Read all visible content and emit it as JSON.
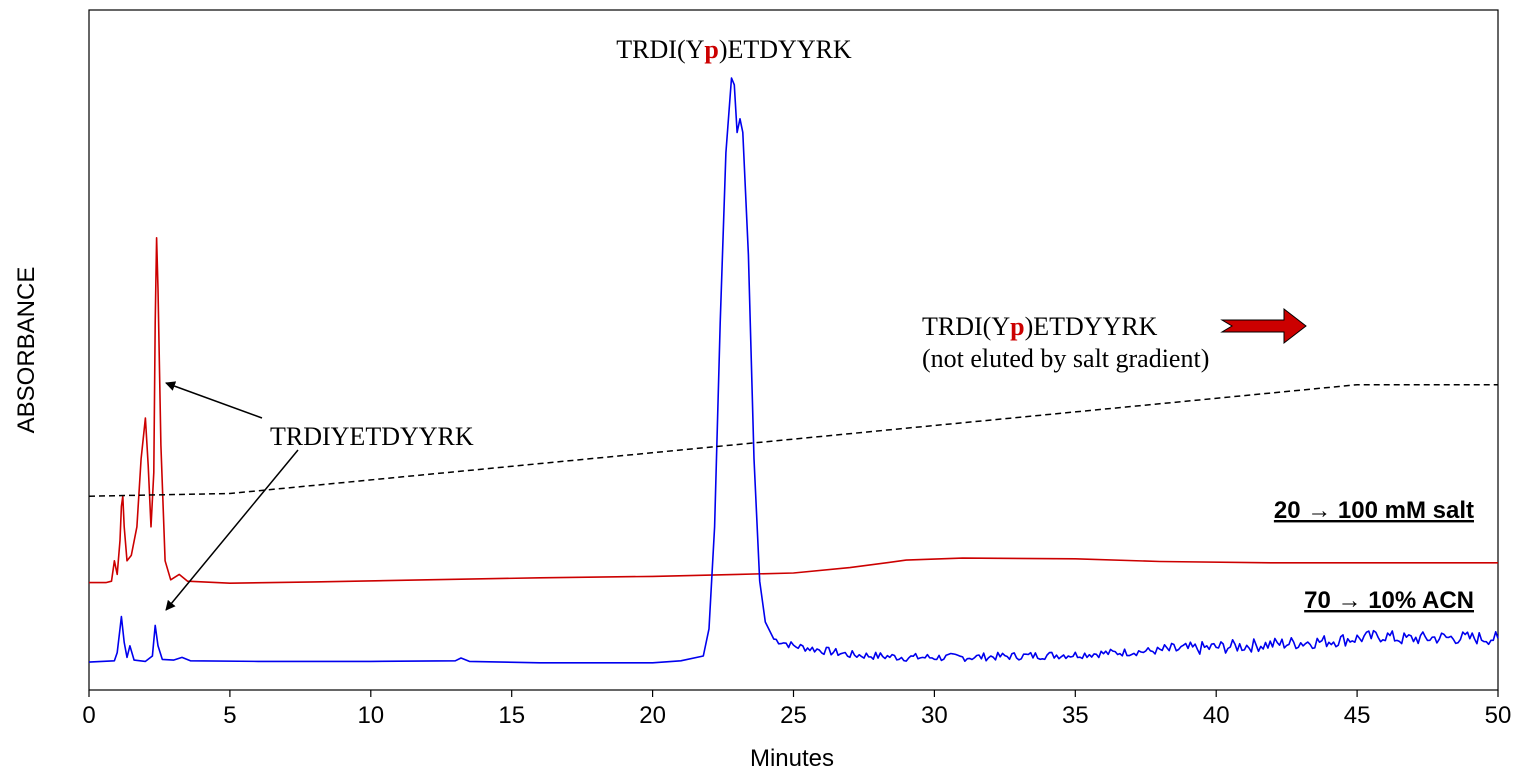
{
  "chart_data": {
    "type": "line",
    "ylabel": "ABSORBANCE",
    "xlabel": "Minutes",
    "xlim": [
      0,
      50
    ],
    "x_ticks": [
      0,
      5,
      10,
      15,
      20,
      25,
      30,
      35,
      40,
      45,
      50
    ],
    "grid": false,
    "series": [
      {
        "role": "salt-gradient-baseline",
        "style": "solid",
        "color": "#cc0000",
        "points": [
          [
            0,
            0.118
          ],
          [
            0.6,
            0.118
          ],
          [
            0.8,
            0.12
          ],
          [
            0.9,
            0.15
          ],
          [
            1.0,
            0.13
          ],
          [
            1.1,
            0.18
          ],
          [
            1.15,
            0.23
          ],
          [
            1.2,
            0.245
          ],
          [
            1.25,
            0.2
          ],
          [
            1.35,
            0.15
          ],
          [
            1.5,
            0.158
          ],
          [
            1.7,
            0.2
          ],
          [
            1.85,
            0.3
          ],
          [
            2.0,
            0.36
          ],
          [
            2.1,
            0.29
          ],
          [
            2.2,
            0.2
          ],
          [
            2.3,
            0.28
          ],
          [
            2.35,
            0.5
          ],
          [
            2.4,
            0.625
          ],
          [
            2.45,
            0.55
          ],
          [
            2.55,
            0.32
          ],
          [
            2.7,
            0.15
          ],
          [
            2.9,
            0.122
          ],
          [
            3.2,
            0.13
          ],
          [
            3.5,
            0.12
          ],
          [
            5,
            0.117
          ],
          [
            8,
            0.119
          ],
          [
            12,
            0.122
          ],
          [
            16,
            0.125
          ],
          [
            20,
            0.127
          ],
          [
            23,
            0.13
          ],
          [
            25,
            0.132
          ],
          [
            27,
            0.14
          ],
          [
            29,
            0.151
          ],
          [
            31,
            0.154
          ],
          [
            35,
            0.153
          ],
          [
            38,
            0.149
          ],
          [
            42,
            0.147
          ],
          [
            46,
            0.147
          ],
          [
            50,
            0.147
          ]
        ]
      },
      {
        "role": "acn-gradient-baseline",
        "style": "solid",
        "color": "#0000ee",
        "points": [
          [
            0,
            0.001
          ],
          [
            0.9,
            0.003
          ],
          [
            1.0,
            0.015
          ],
          [
            1.1,
            0.05
          ],
          [
            1.15,
            0.068
          ],
          [
            1.25,
            0.03
          ],
          [
            1.35,
            0.008
          ],
          [
            1.45,
            0.025
          ],
          [
            1.6,
            0.004
          ],
          [
            2.0,
            0.002
          ],
          [
            2.25,
            0.01
          ],
          [
            2.35,
            0.055
          ],
          [
            2.45,
            0.025
          ],
          [
            2.6,
            0.005
          ],
          [
            3.0,
            0.004
          ],
          [
            3.3,
            0.008
          ],
          [
            3.6,
            0.003
          ],
          [
            6,
            0.002
          ],
          [
            10,
            0.002
          ],
          [
            13,
            0.003
          ],
          [
            13.2,
            0.007
          ],
          [
            13.5,
            0.002
          ],
          [
            16,
            0
          ],
          [
            20,
            0
          ],
          [
            21,
            0.003
          ],
          [
            21.8,
            0.01
          ],
          [
            22.0,
            0.05
          ],
          [
            22.2,
            0.2
          ],
          [
            22.4,
            0.5
          ],
          [
            22.6,
            0.75
          ],
          [
            22.8,
            0.86
          ],
          [
            22.9,
            0.85
          ],
          [
            23.0,
            0.78
          ],
          [
            23.1,
            0.8
          ],
          [
            23.2,
            0.78
          ],
          [
            23.4,
            0.6
          ],
          [
            23.6,
            0.3
          ],
          [
            23.8,
            0.12
          ],
          [
            24.0,
            0.06
          ],
          [
            24.3,
            0.035
          ],
          [
            25,
            0.025
          ],
          [
            27,
            0.012
          ],
          [
            29,
            0.008
          ],
          [
            31,
            0.008
          ],
          [
            33,
            0.01
          ],
          [
            35,
            0.012
          ],
          [
            38,
            0.018
          ],
          [
            41,
            0.025
          ],
          [
            44,
            0.032
          ],
          [
            46,
            0.04
          ],
          [
            46.5,
            0.035
          ],
          [
            48,
            0.037
          ],
          [
            50,
            0.036
          ]
        ]
      },
      {
        "role": "gradient-program",
        "style": "dashed",
        "color": "#000000",
        "points": [
          [
            0,
            0.245
          ],
          [
            5,
            0.249
          ],
          [
            45,
            0.409
          ],
          [
            50,
            0.409
          ]
        ]
      }
    ],
    "annotations": [
      {
        "text": "TRDI(Y",
        "highlight": "p",
        "text_after": ")ETDYYRK",
        "x": 23.2,
        "y": 0.945
      },
      {
        "text": "TRDI(Y",
        "highlight": "p",
        "text_after": ")ETDYYRK",
        "note": "(not eluted by salt gradient)",
        "x": 29.5,
        "y": 0.51
      },
      {
        "text": "TRDIYETDYYRK",
        "x": 6.5,
        "y": 0.33
      },
      {
        "text": "20 → 100 mM salt",
        "x": 49.2,
        "y": 0.21
      },
      {
        "text": "70 → 10% ACN",
        "x": 49.2,
        "y": 0.06
      }
    ]
  },
  "colors": {
    "salt_trace": "#cc0000",
    "acn_trace": "#0000ee",
    "phospho_highlight": "#cc0000",
    "arrow_fill": "#cc0000"
  },
  "labels": {
    "ylabel": "ABSORBANCE",
    "xlabel": "Minutes",
    "peak_label_prefix": "TRDI(Y",
    "peak_label_p": "p",
    "peak_label_suffix": ")ETDYYRK",
    "retained_label_prefix": "TRDI(Y",
    "retained_label_p": "p",
    "retained_label_suffix": ")ETDYYRK",
    "retained_note": "(not eluted by salt gradient)",
    "unphos_label": "TRDIYETDYYRK",
    "salt_label": "20 → 100 mM salt",
    "acn_label": "70 → 10% ACN"
  }
}
